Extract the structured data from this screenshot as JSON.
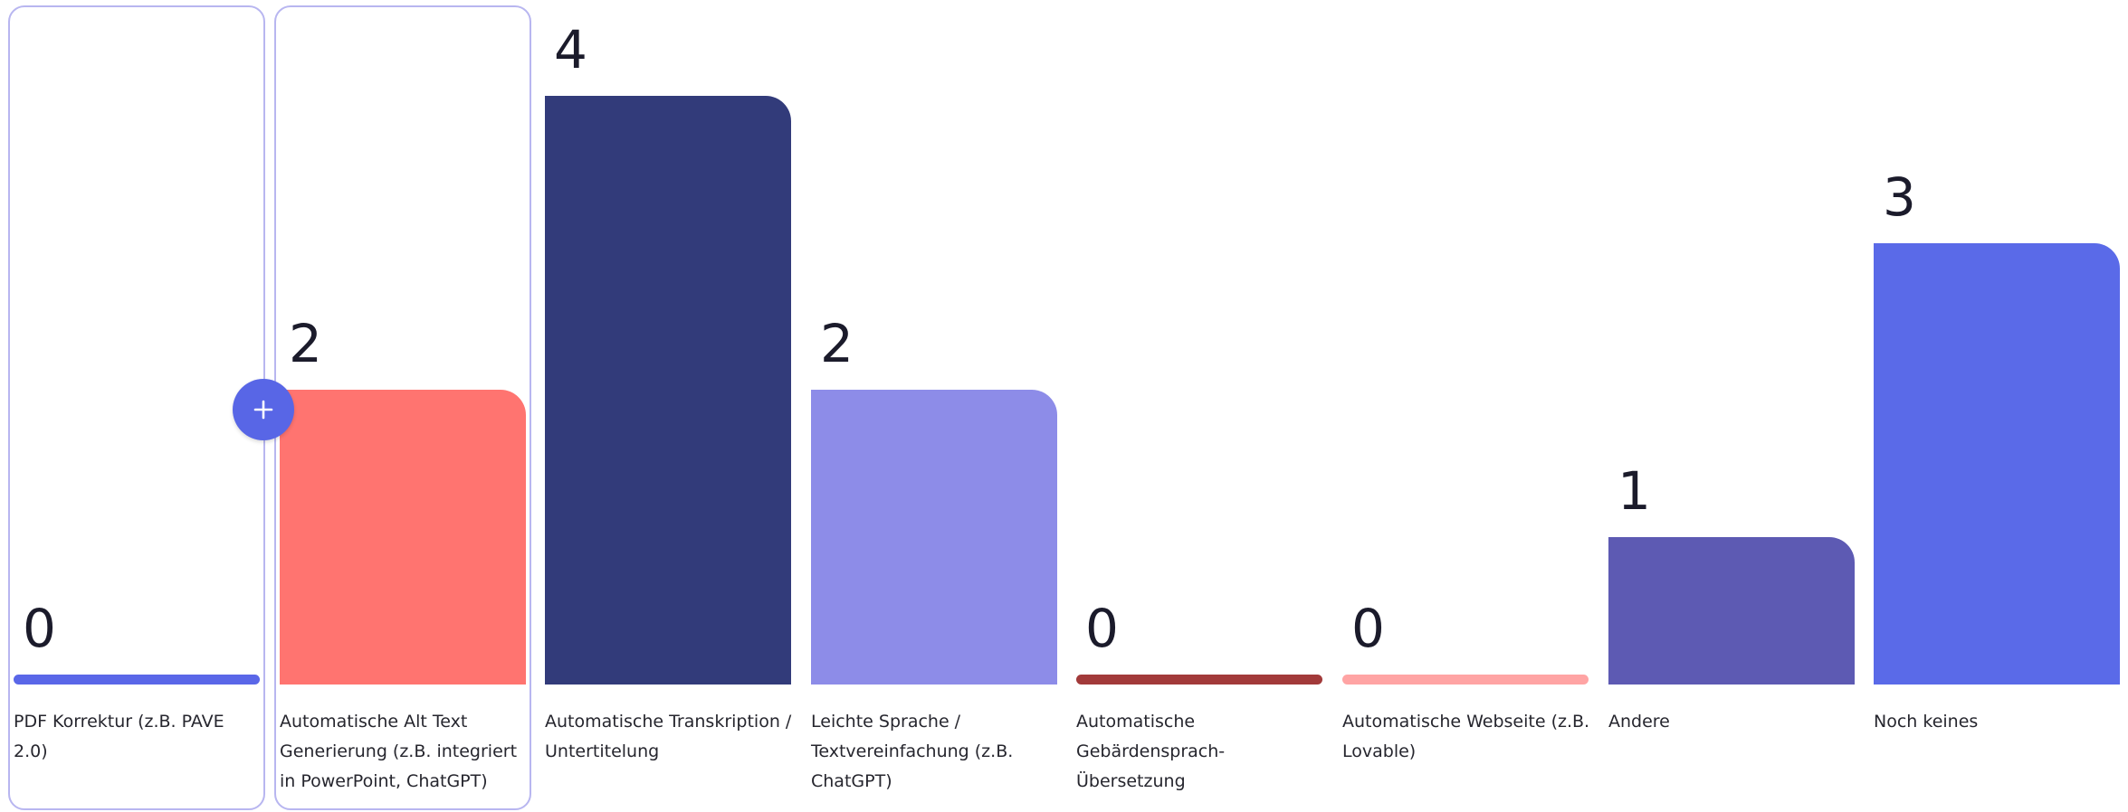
{
  "chart_data": {
    "type": "bar",
    "categories": [
      "PDF Korrektur (z.B. PAVE 2.0)",
      "Automatische Alt Text Generierung (z.B. integriert in PowerPoint, ChatGPT)",
      "Automatische Transkription / Untertitelung",
      "Leichte Sprache / Textvereinfachung (z.B. ChatGPT)",
      "Automatische Gebärdensprach-Übersetzung",
      "Automatische Webseite (z.B. Lovable)",
      "Andere",
      "Noch keines"
    ],
    "values": [
      0,
      2,
      4,
      2,
      0,
      0,
      1,
      3
    ],
    "value_labels": [
      "0",
      "2",
      "4",
      "2",
      "0",
      "0",
      "1",
      "3"
    ],
    "colors": [
      "#5a67e8",
      "#ff7470",
      "#323b7a",
      "#8d8ce8",
      "#a23a3a",
      "#ffa4a4",
      "#5d5ab3",
      "#5a6ae8"
    ],
    "ylim": [
      0,
      4
    ],
    "grid": false,
    "legend": "none",
    "highlighted_categories": [
      0,
      1
    ]
  },
  "controls": {
    "add_symbol": "+"
  }
}
